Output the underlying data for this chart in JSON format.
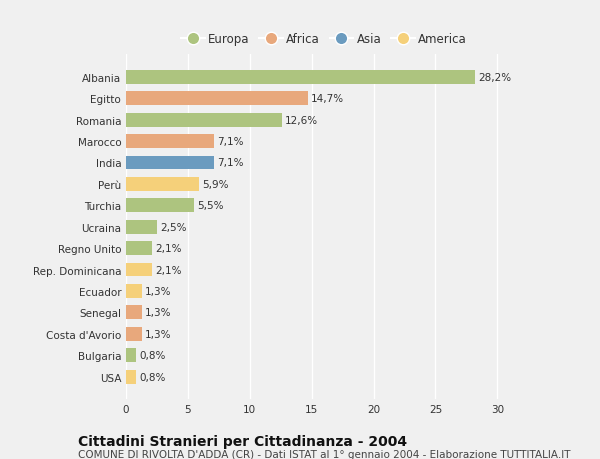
{
  "title": "Cittadini Stranieri per Cittadinanza - 2004",
  "subtitle": "COMUNE DI RIVOLTA D'ADDA (CR) - Dati ISTAT al 1° gennaio 2004 - Elaborazione TUTTITALIA.IT",
  "categories": [
    "Albania",
    "Egitto",
    "Romania",
    "Marocco",
    "India",
    "Perù",
    "Turchia",
    "Ucraina",
    "Regno Unito",
    "Rep. Dominicana",
    "Ecuador",
    "Senegal",
    "Costa d'Avorio",
    "Bulgaria",
    "USA"
  ],
  "values": [
    28.2,
    14.7,
    12.6,
    7.1,
    7.1,
    5.9,
    5.5,
    2.5,
    2.1,
    2.1,
    1.3,
    1.3,
    1.3,
    0.8,
    0.8
  ],
  "labels": [
    "28,2%",
    "14,7%",
    "12,6%",
    "7,1%",
    "7,1%",
    "5,9%",
    "5,5%",
    "2,5%",
    "2,1%",
    "2,1%",
    "1,3%",
    "1,3%",
    "1,3%",
    "0,8%",
    "0,8%"
  ],
  "colors": [
    "#adc47f",
    "#e8a87c",
    "#adc47f",
    "#e8a87c",
    "#6b9bbf",
    "#f5d07a",
    "#adc47f",
    "#adc47f",
    "#adc47f",
    "#f5d07a",
    "#f5d07a",
    "#e8a87c",
    "#e8a87c",
    "#adc47f",
    "#f5d07a"
  ],
  "legend": [
    {
      "label": "Europa",
      "color": "#adc47f"
    },
    {
      "label": "Africa",
      "color": "#e8a87c"
    },
    {
      "label": "Asia",
      "color": "#6b9bbf"
    },
    {
      "label": "America",
      "color": "#f5d07a"
    }
  ],
  "xlim": [
    0,
    32
  ],
  "xticks": [
    0,
    5,
    10,
    15,
    20,
    25,
    30
  ],
  "background_color": "#f0f0f0",
  "plot_bg_color": "#f0f0f0",
  "grid_color": "#ffffff",
  "bar_height": 0.65,
  "title_fontsize": 10,
  "subtitle_fontsize": 7.5,
  "label_fontsize": 7.5,
  "tick_fontsize": 7.5,
  "legend_fontsize": 8.5
}
